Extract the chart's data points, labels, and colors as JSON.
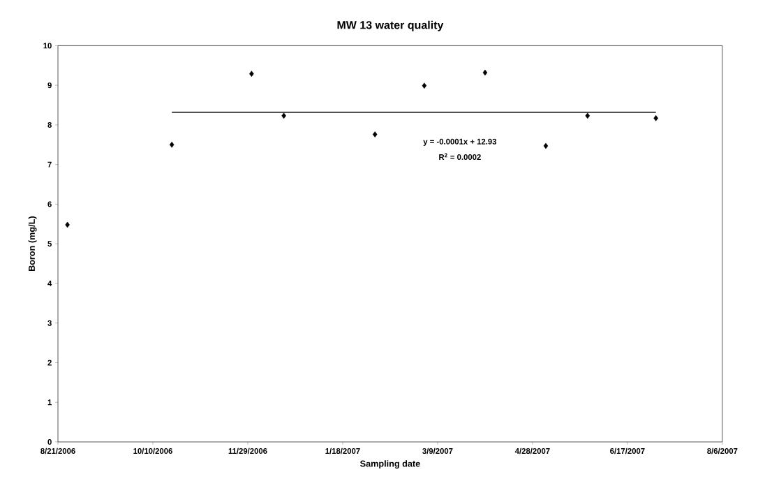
{
  "chart_data": {
    "type": "scatter",
    "title": "MW 13 water quality",
    "xlabel": "Sampling date",
    "ylabel": "Boron (mg/L)",
    "x": [
      "2006-08-26",
      "2006-10-20",
      "2006-12-01",
      "2006-12-18",
      "2007-02-04",
      "2007-03-02",
      "2007-04-03",
      "2007-05-05",
      "2007-05-27",
      "2007-07-02"
    ],
    "series": [
      {
        "color": "#000000",
        "values": [
          5.48,
          7.5,
          9.29,
          8.23,
          7.76,
          8.99,
          9.32,
          7.47,
          8.23,
          8.17
        ],
        "marker": "diamond"
      },
      {
        "type": "line",
        "color": "#000000",
        "x": [
          "2006-10-20",
          "2007-07-02"
        ],
        "values": [
          8.32,
          8.32
        ],
        "marker": "none",
        "line_style": "solid"
      }
    ],
    "xlim": [
      "2006-08-21",
      "2007-08-06"
    ],
    "xticks": [
      {
        "value": "2006-08-21",
        "label": "8/21/2006"
      },
      {
        "value": "2006-10-10",
        "label": "10/10/2006"
      },
      {
        "value": "2006-11-29",
        "label": "11/29/2006"
      },
      {
        "value": "2007-01-18",
        "label": "1/18/2007"
      },
      {
        "value": "2007-03-09",
        "label": "3/9/2007"
      },
      {
        "value": "2007-04-28",
        "label": "4/28/2007"
      },
      {
        "value": "2007-06-17",
        "label": "6/17/2007"
      },
      {
        "value": "2007-08-06",
        "label": "8/6/2007"
      }
    ],
    "ylim": [
      0,
      10
    ],
    "yticks": [
      0,
      1,
      2,
      3,
      4,
      5,
      6,
      7,
      8,
      9,
      10
    ],
    "annotations": [
      "y = -0.0001x + 12.93",
      "R$^{2}$ = 0.0002"
    ],
    "grid": false
  }
}
